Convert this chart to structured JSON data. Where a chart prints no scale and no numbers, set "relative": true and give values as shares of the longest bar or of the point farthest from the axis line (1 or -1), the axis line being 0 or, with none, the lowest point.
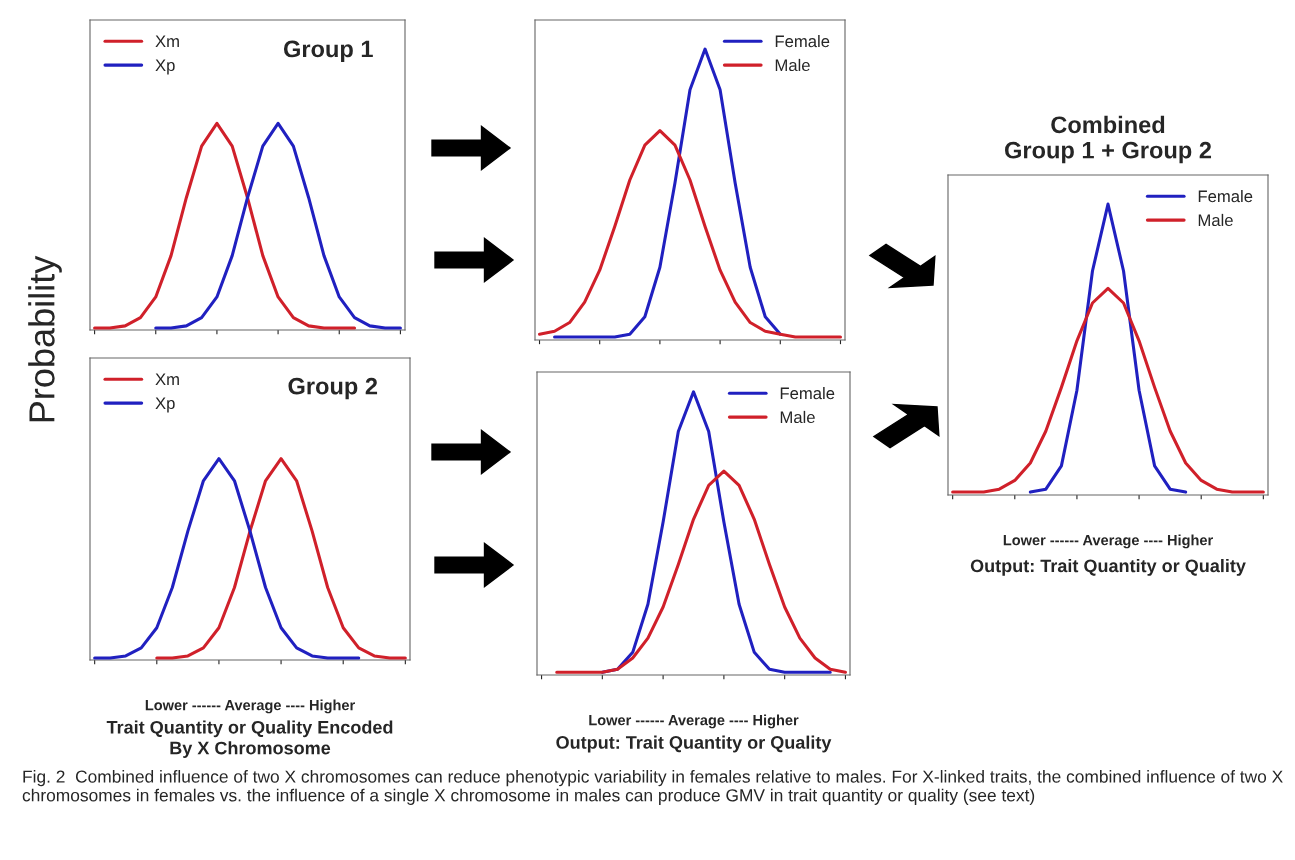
{
  "chart_data": [
    {
      "type": "line",
      "relative": true,
      "title": "Group 1",
      "ylabel": "Probability",
      "legend": "top left",
      "categories": [
        null,
        null,
        null,
        null,
        null,
        null,
        null,
        null,
        null,
        null,
        null,
        null,
        null,
        null,
        null,
        null,
        null,
        null,
        null,
        null,
        null
      ],
      "series": [
        {
          "name": "Xm",
          "color": "#d0202a",
          "values": [
            0.01,
            0.01,
            0.02,
            0.06,
            0.16,
            0.36,
            0.64,
            0.89,
            1,
            0.89,
            0.64,
            0.36,
            0.16,
            0.06,
            0.02,
            0.01,
            0.01,
            0.01,
            null,
            null,
            null
          ]
        },
        {
          "name": "Xp",
          "color": "#2020c0",
          "values": [
            null,
            null,
            null,
            null,
            0.01,
            0.01,
            0.02,
            0.06,
            0.16,
            0.36,
            0.64,
            0.89,
            1,
            0.89,
            0.64,
            0.36,
            0.16,
            0.06,
            0.02,
            0.01,
            0.01
          ]
        }
      ]
    },
    {
      "type": "line",
      "relative": true,
      "title": "Group 2",
      "xlabel": "Lower ------ Average ---- Higher",
      "legend": "top left",
      "annotations": [
        "Trait Quantity or Quality Encoded\nBy X Chromosome"
      ],
      "categories": [
        null,
        null,
        null,
        null,
        null,
        null,
        null,
        null,
        null,
        null,
        null,
        null,
        null,
        null,
        null,
        null,
        null,
        null,
        null,
        null,
        null
      ],
      "series": [
        {
          "name": "Xm",
          "color": "#d0202a",
          "values": [
            null,
            null,
            null,
            null,
            0.01,
            0.01,
            0.02,
            0.06,
            0.16,
            0.36,
            0.64,
            0.89,
            1,
            0.89,
            0.64,
            0.36,
            0.16,
            0.06,
            0.02,
            0.01,
            0.01
          ]
        },
        {
          "name": "Xp",
          "color": "#2020c0",
          "values": [
            0.01,
            0.01,
            0.02,
            0.06,
            0.16,
            0.36,
            0.64,
            0.89,
            1,
            0.89,
            0.64,
            0.36,
            0.16,
            0.06,
            0.02,
            0.01,
            0.01,
            0.01,
            null,
            null,
            null
          ]
        }
      ]
    },
    {
      "type": "line",
      "relative": true,
      "legend": "top right",
      "categories": [
        null,
        null,
        null,
        null,
        null,
        null,
        null,
        null,
        null,
        null,
        null,
        null,
        null,
        null,
        null,
        null,
        null,
        null,
        null,
        null,
        null
      ],
      "series": [
        {
          "name": "Female",
          "color": "#2020c0",
          "values": [
            null,
            0.01,
            0.01,
            0.01,
            0.01,
            0.01,
            0.02,
            0.08,
            0.25,
            0.54,
            0.86,
            1,
            0.86,
            0.54,
            0.25,
            0.08,
            0.02,
            null,
            null,
            null,
            null
          ]
        },
        {
          "name": "Male",
          "color": "#d0202a",
          "values": [
            0.02,
            0.03,
            0.06,
            0.13,
            0.24,
            0.39,
            0.55,
            0.67,
            0.72,
            0.67,
            0.55,
            0.39,
            0.24,
            0.13,
            0.06,
            0.03,
            0.02,
            0.01,
            0.01,
            0.01,
            0.01
          ]
        }
      ]
    },
    {
      "type": "line",
      "relative": true,
      "xlabel": "Lower ------ Average ---- Higher",
      "legend": "top right",
      "annotations": [
        "Output: Trait Quantity or Quality"
      ],
      "categories": [
        null,
        null,
        null,
        null,
        null,
        null,
        null,
        null,
        null,
        null,
        null,
        null,
        null,
        null,
        null,
        null,
        null,
        null,
        null,
        null,
        null
      ],
      "series": [
        {
          "name": "Female",
          "color": "#2020c0",
          "values": [
            null,
            null,
            null,
            null,
            0.01,
            0.02,
            0.08,
            0.25,
            0.54,
            0.86,
            1,
            0.86,
            0.54,
            0.25,
            0.08,
            0.02,
            0.01,
            0.01,
            0.01,
            0.01,
            null
          ]
        },
        {
          "name": "Male",
          "color": "#d0202a",
          "values": [
            null,
            0.01,
            0.01,
            0.01,
            0.01,
            0.02,
            0.06,
            0.13,
            0.24,
            0.39,
            0.55,
            0.67,
            0.72,
            0.67,
            0.55,
            0.39,
            0.24,
            0.13,
            0.06,
            0.02,
            0.01
          ]
        }
      ]
    },
    {
      "type": "line",
      "relative": true,
      "title": "Combined\nGroup 1 + Group 2",
      "xlabel": "Lower ------ Average ---- Higher",
      "legend": "top right",
      "annotations": [
        "Output: Trait Quantity or Quality",
        "Fig. 2  Combined influence of two X chromosomes can reduce phenotypic variability in females relative to males. For X-linked traits, the combined influence of two X chromosomes in females vs. the influence of a single X chromosome in males can produce GMV in trait quantity or quality (see text)"
      ],
      "categories": [
        null,
        null,
        null,
        null,
        null,
        null,
        null,
        null,
        null,
        null,
        null,
        null,
        null,
        null,
        null,
        null,
        null,
        null,
        null,
        null,
        null
      ],
      "series": [
        {
          "name": "Female",
          "color": "#2020c0",
          "values": [
            null,
            null,
            null,
            null,
            null,
            0.01,
            0.02,
            0.1,
            0.36,
            0.77,
            1,
            0.77,
            0.36,
            0.1,
            0.02,
            0.01,
            null,
            null,
            null,
            null,
            null
          ]
        },
        {
          "name": "Male",
          "color": "#d0202a",
          "values": [
            0.01,
            0.01,
            0.01,
            0.02,
            0.05,
            0.11,
            0.22,
            0.37,
            0.53,
            0.66,
            0.71,
            0.66,
            0.53,
            0.37,
            0.22,
            0.11,
            0.05,
            0.02,
            0.01,
            0.01,
            0.01
          ]
        }
      ]
    }
  ]
}
